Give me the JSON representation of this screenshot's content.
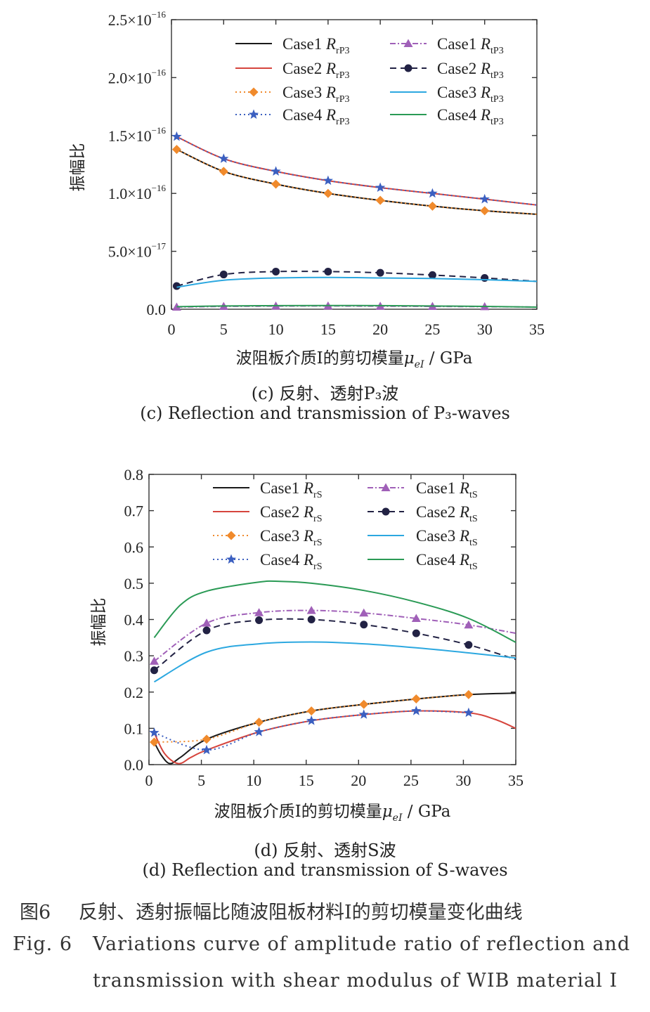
{
  "chart_data": [
    {
      "type": "line",
      "id": "c",
      "ylabel": "振幅比",
      "xlabel_prefix": "波阻板介质I的剪切模量",
      "xlabel_symbol": "μ",
      "xlabel_subscript": "eI",
      "xlabel_unit": " / GPa",
      "xlim": [
        0,
        35
      ],
      "ylim": [
        0,
        2.5e-16
      ],
      "x_ticks": [
        "0",
        "5",
        "10",
        "15",
        "20",
        "25",
        "30",
        "35"
      ],
      "y_ticks": [
        {
          "value": 0,
          "mant": "0.0",
          "exp": ""
        },
        {
          "value": 5e-17,
          "mant": "5.0×10",
          "exp": "−17"
        },
        {
          "value": 1e-16,
          "mant": "1.0×10",
          "exp": "−16"
        },
        {
          "value": 1.5e-16,
          "mant": "1.5×10",
          "exp": "−16"
        },
        {
          "value": 2e-16,
          "mant": "2.0×10",
          "exp": "−16"
        },
        {
          "value": 2.5e-16,
          "mant": "2.5×10",
          "exp": "−16"
        }
      ],
      "legend": [
        {
          "case": "Case1",
          "sym": "R",
          "sub": "rP3"
        },
        {
          "case": "Case1",
          "sym": "R",
          "sub": "tP3"
        },
        {
          "case": "Case2",
          "sym": "R",
          "sub": "rP3"
        },
        {
          "case": "Case2",
          "sym": "R",
          "sub": "tP3"
        },
        {
          "case": "Case3",
          "sym": "R",
          "sub": "rP3"
        },
        {
          "case": "Case3",
          "sym": "R",
          "sub": "tP3"
        },
        {
          "case": "Case4",
          "sym": "R",
          "sub": "rP3"
        },
        {
          "case": "Case4",
          "sym": "R",
          "sub": "tP3"
        }
      ],
      "series": [
        {
          "name": "Case1 RrP3",
          "color": "#1a1a1a",
          "dash": "",
          "marker": "none",
          "x": [
            0.5,
            5,
            10,
            15,
            20,
            25,
            30,
            35
          ],
          "y": [
            1.38e-16,
            1.19e-16,
            1.08e-16,
            1e-16,
            9.4e-17,
            8.9e-17,
            8.5e-17,
            8.2e-17
          ]
        },
        {
          "name": "Case2 RrP3",
          "color": "#d6453d",
          "dash": "",
          "marker": "none",
          "x": [
            0.5,
            5,
            10,
            15,
            20,
            25,
            30,
            35
          ],
          "y": [
            1.49e-16,
            1.3e-16,
            1.19e-16,
            1.11e-16,
            1.05e-16,
            1e-16,
            9.5e-17,
            9e-17
          ]
        },
        {
          "name": "Case3 RrP3",
          "color": "#f08a2c",
          "dash": "2,4",
          "marker": "diamond",
          "x": [
            0.5,
            5,
            10,
            15,
            20,
            25,
            30,
            35
          ],
          "y": [
            1.38e-16,
            1.19e-16,
            1.08e-16,
            1e-16,
            9.4e-17,
            8.9e-17,
            8.5e-17,
            8.2e-17
          ]
        },
        {
          "name": "Case4 RrP3",
          "color": "#3b5fc0",
          "dash": "2,4",
          "marker": "star",
          "x": [
            0.5,
            5,
            10,
            15,
            20,
            25,
            30,
            35
          ],
          "y": [
            1.49e-16,
            1.3e-16,
            1.19e-16,
            1.11e-16,
            1.05e-16,
            1e-16,
            9.5e-17,
            9e-17
          ]
        },
        {
          "name": "Case1 RtP3",
          "color": "#a060b8",
          "dash": "8,3,2,3",
          "marker": "triangle",
          "x": [
            0.5,
            5,
            10,
            15,
            20,
            25,
            30,
            35
          ],
          "y": [
            1.8e-18,
            2.4e-18,
            2.7e-18,
            2.8e-18,
            2.6e-18,
            2.4e-18,
            2.2e-18,
            1.9e-18
          ]
        },
        {
          "name": "Case2 RtP3",
          "color": "#222244",
          "dash": "9,6",
          "marker": "circle",
          "x": [
            0.5,
            5,
            10,
            15,
            20,
            25,
            30,
            35
          ],
          "y": [
            2e-17,
            3e-17,
            3.25e-17,
            3.25e-17,
            3.15e-17,
            2.95e-17,
            2.7e-17,
            2.4e-17
          ]
        },
        {
          "name": "Case3 RtP3",
          "color": "#2ca8e0",
          "dash": "",
          "marker": "none",
          "x": [
            0.5,
            5,
            10,
            15,
            20,
            25,
            30,
            35
          ],
          "y": [
            1.9e-17,
            2.5e-17,
            2.7e-17,
            2.75e-17,
            2.7e-17,
            2.65e-17,
            2.55e-17,
            2.4e-17
          ]
        },
        {
          "name": "Case4 RtP3",
          "color": "#2a9a55",
          "dash": "",
          "marker": "none",
          "x": [
            0.5,
            5,
            10,
            15,
            20,
            25,
            30,
            35
          ],
          "y": [
            2.2e-18,
            2.8e-18,
            3.1e-18,
            3.2e-18,
            3.1e-18,
            2.8e-18,
            2.4e-18,
            1.8e-18
          ]
        }
      ],
      "caption_cn": "(c) 反射、透射P₃波",
      "caption_en": "(c) Reflection and transmission of P₃-waves"
    },
    {
      "type": "line",
      "id": "d",
      "ylabel": "振幅比",
      "xlabel_prefix": "波阻板介质I的剪切模量",
      "xlabel_symbol": "μ",
      "xlabel_subscript": "eI",
      "xlabel_unit": " / GPa",
      "xlim": [
        0,
        35
      ],
      "ylim": [
        0,
        0.8
      ],
      "x_ticks": [
        "0",
        "5",
        "10",
        "15",
        "20",
        "25",
        "30",
        "35"
      ],
      "y_ticks": [
        {
          "value": 0.0,
          "mant": "0.0",
          "exp": ""
        },
        {
          "value": 0.1,
          "mant": "0.1",
          "exp": ""
        },
        {
          "value": 0.2,
          "mant": "0.2",
          "exp": ""
        },
        {
          "value": 0.3,
          "mant": "0.3",
          "exp": ""
        },
        {
          "value": 0.4,
          "mant": "0.4",
          "exp": ""
        },
        {
          "value": 0.5,
          "mant": "0.5",
          "exp": ""
        },
        {
          "value": 0.6,
          "mant": "0.6",
          "exp": ""
        },
        {
          "value": 0.7,
          "mant": "0.7",
          "exp": ""
        },
        {
          "value": 0.8,
          "mant": "0.8",
          "exp": ""
        }
      ],
      "legend": [
        {
          "case": "Case1",
          "sym": "R",
          "sub": "rS"
        },
        {
          "case": "Case1",
          "sym": "R",
          "sub": "tS"
        },
        {
          "case": "Case2",
          "sym": "R",
          "sub": "rS"
        },
        {
          "case": "Case2",
          "sym": "R",
          "sub": "tS"
        },
        {
          "case": "Case3",
          "sym": "R",
          "sub": "rS"
        },
        {
          "case": "Case3",
          "sym": "R",
          "sub": "tS"
        },
        {
          "case": "Case4",
          "sym": "R",
          "sub": "rS"
        },
        {
          "case": "Case4",
          "sym": "R",
          "sub": "tS"
        }
      ],
      "series": [
        {
          "name": "Case1 RrS",
          "color": "#1a1a1a",
          "dash": "",
          "marker": "none",
          "x": [
            0.5,
            1.2,
            2.0,
            3.0,
            5.5,
            10.5,
            15.5,
            20.5,
            25.5,
            30.5,
            35
          ],
          "y": [
            0.062,
            0.025,
            0.003,
            0.02,
            0.07,
            0.117,
            0.148,
            0.166,
            0.181,
            0.193,
            0.197
          ]
        },
        {
          "name": "Case2 RrS",
          "color": "#d6453d",
          "dash": "",
          "marker": "none",
          "x": [
            0.5,
            1.5,
            2.8,
            4.0,
            5.5,
            10.5,
            15.5,
            20.5,
            25.5,
            30.5,
            33,
            35
          ],
          "y": [
            0.088,
            0.03,
            0.003,
            0.02,
            0.04,
            0.09,
            0.121,
            0.138,
            0.148,
            0.143,
            0.125,
            0.1
          ]
        },
        {
          "name": "Case3 RrS",
          "color": "#f08a2c",
          "dash": "2,4",
          "marker": "diamond",
          "x": [
            0.5,
            5.5,
            10.5,
            15.5,
            20.5,
            25.5,
            30.5
          ],
          "y": [
            0.062,
            0.07,
            0.117,
            0.148,
            0.166,
            0.181,
            0.193
          ]
        },
        {
          "name": "Case4 RrS",
          "color": "#3b5fc0",
          "dash": "2,4",
          "marker": "star",
          "x": [
            0.5,
            5.5,
            10.5,
            15.5,
            20.5,
            25.5,
            30.5
          ],
          "y": [
            0.088,
            0.04,
            0.09,
            0.121,
            0.138,
            0.148,
            0.143
          ]
        },
        {
          "name": "Case1 RtS",
          "color": "#a060b8",
          "dash": "8,3,2,3",
          "marker": "triangle",
          "x": [
            0.5,
            5.5,
            10.5,
            15.5,
            20.5,
            25.5,
            30.5,
            35
          ],
          "y": [
            0.285,
            0.39,
            0.419,
            0.425,
            0.418,
            0.403,
            0.385,
            0.362
          ]
        },
        {
          "name": "Case2 RtS",
          "color": "#222244",
          "dash": "9,6",
          "marker": "circle",
          "x": [
            0.5,
            5.5,
            10.5,
            15.5,
            20.5,
            25.5,
            30.5,
            35
          ],
          "y": [
            0.26,
            0.37,
            0.398,
            0.4,
            0.386,
            0.362,
            0.33,
            0.29
          ]
        },
        {
          "name": "Case3 RtS",
          "color": "#2ca8e0",
          "dash": "",
          "marker": "none",
          "x": [
            0.5,
            5.5,
            10.5,
            15.5,
            20.5,
            25.5,
            30.5,
            35
          ],
          "y": [
            0.228,
            0.31,
            0.333,
            0.338,
            0.333,
            0.322,
            0.308,
            0.294
          ]
        },
        {
          "name": "Case4 RtS",
          "color": "#2a9a55",
          "dash": "",
          "marker": "none",
          "x": [
            0.5,
            3,
            5.5,
            10.5,
            12.5,
            15.5,
            20.5,
            25.5,
            30.5,
            35
          ],
          "y": [
            0.35,
            0.44,
            0.478,
            0.503,
            0.505,
            0.5,
            0.48,
            0.448,
            0.403,
            0.337
          ]
        }
      ],
      "caption_cn": "(d) 反射、透射S波",
      "caption_en": "(d) Reflection and transmission of S-waves"
    }
  ],
  "figure_caption_cn_label": "图6",
  "figure_caption_cn": "反射、透射振幅比随波阻板材料I的剪切模量变化曲线",
  "figure_caption_en_label": "Fig. 6",
  "figure_caption_en_line1": "Variations curve of amplitude ratio of reflection and",
  "figure_caption_en_line2": "transmission with shear modulus of WIB material I"
}
